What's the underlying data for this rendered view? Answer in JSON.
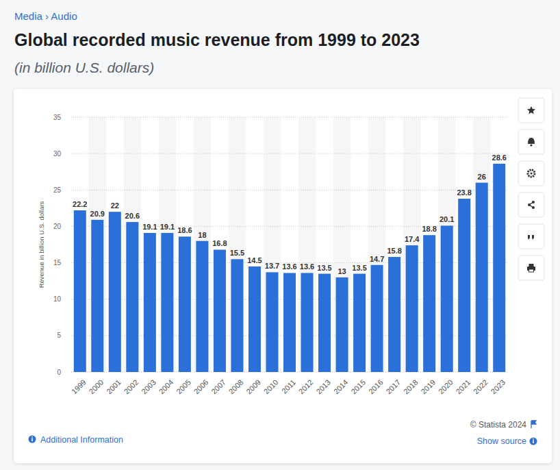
{
  "chart_data": {
    "type": "bar",
    "breadcrumb": "Media › Audio",
    "title": "Global recorded music revenue from 1999 to 2023",
    "subtitle": "(in billion U.S. dollars)",
    "y_label": "Revenue in billion U.S. dollars",
    "categories": [
      "1999",
      "2000",
      "2001",
      "2002",
      "2003",
      "2004",
      "2005",
      "2006",
      "2007",
      "2008",
      "2009",
      "2010",
      "2011",
      "2012",
      "2013",
      "2014",
      "2015",
      "2016",
      "2017",
      "2018",
      "2019",
      "2020",
      "2021",
      "2022",
      "2023"
    ],
    "values": [
      22.2,
      20.9,
      22,
      20.6,
      19.1,
      19.1,
      18.6,
      18,
      16.8,
      15.5,
      14.5,
      13.7,
      13.6,
      13.6,
      13.5,
      13,
      13.5,
      14.7,
      15.8,
      17.4,
      18.8,
      20.1,
      23.8,
      26,
      28.6
    ],
    "color": "#2b6fd8",
    "ylim": [
      0,
      35
    ],
    "yticks": [
      0,
      5,
      10,
      15,
      20,
      25,
      30,
      35
    ],
    "grid": true,
    "data_labels": true,
    "source": "© Statista 2024",
    "additional_info": "Additional Information",
    "show_source": "Show source"
  }
}
